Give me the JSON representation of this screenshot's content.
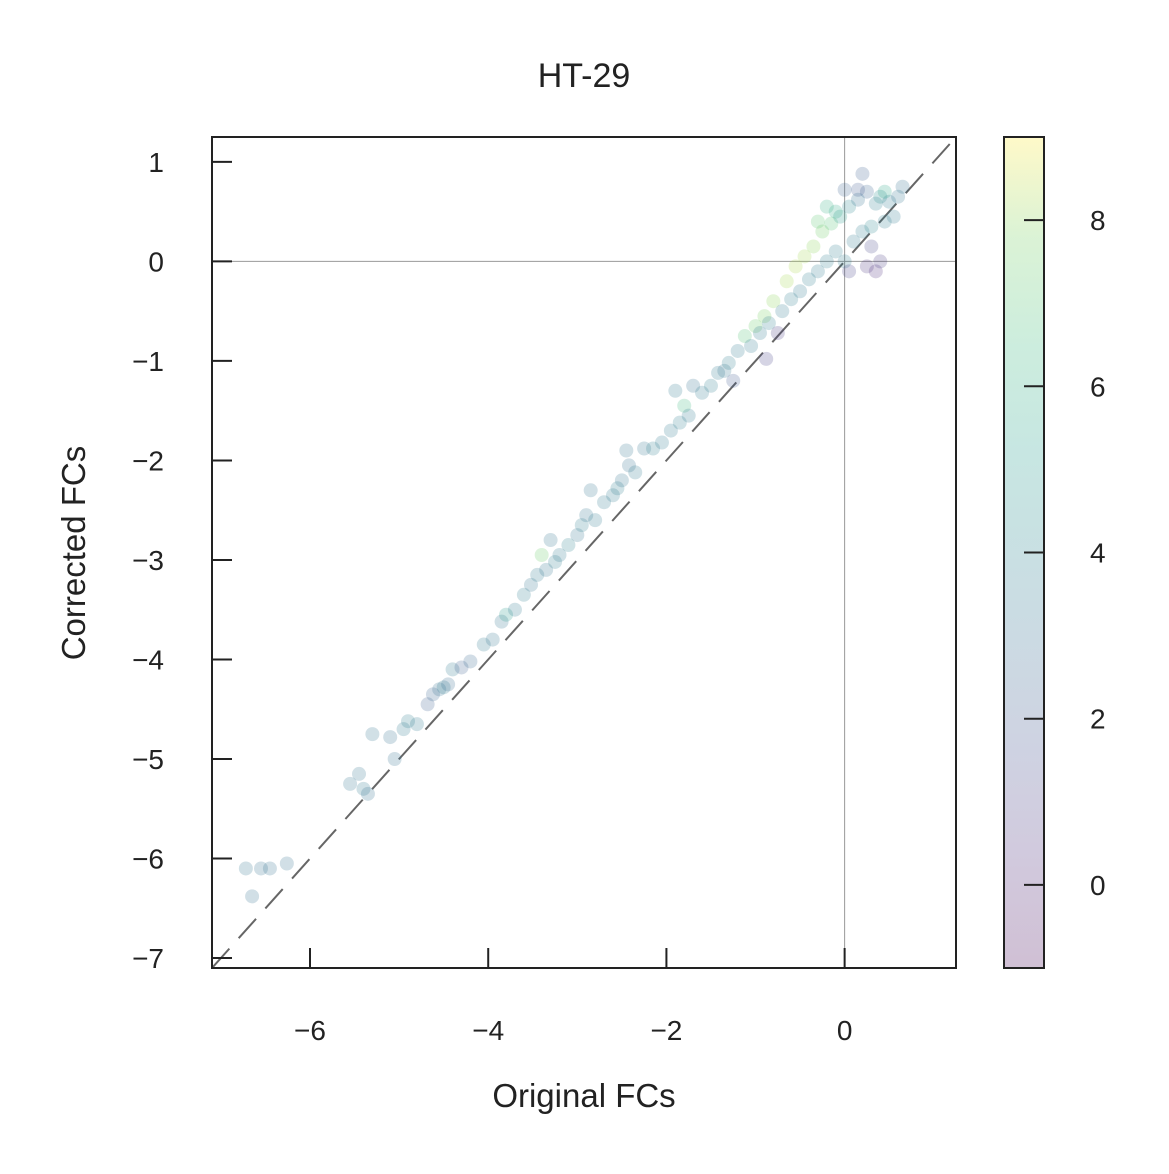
{
  "chart_data": {
    "type": "scatter",
    "title": "HT-29",
    "xlabel": "Original FCs",
    "ylabel": "Corrected FCs",
    "xlim": [
      -7.1,
      1.25
    ],
    "ylim": [
      -7.1,
      1.25
    ],
    "x_ticks": [
      -6,
      -4,
      -2,
      0
    ],
    "x_tick_labels": [
      "−6",
      "−4",
      "−2",
      "0"
    ],
    "y_ticks": [
      1,
      0,
      -1,
      -2,
      -3,
      -4,
      -5,
      -6,
      -7
    ],
    "y_tick_labels": [
      "1",
      "0",
      "−1",
      "−2",
      "−3",
      "−4",
      "−5",
      "−6",
      "−7"
    ],
    "reference_lines": {
      "diagonal": "y = x (dashed)",
      "horizontal": 0,
      "vertical": 0
    },
    "colorbar": {
      "colormap": "viridis",
      "range": [
        -1,
        9
      ],
      "ticks": [
        0,
        2,
        4,
        6,
        8
      ],
      "tick_labels": [
        "0",
        "2",
        "4",
        "6",
        "8"
      ]
    },
    "grid": false,
    "legend": "none",
    "point_alpha": 0.22,
    "colors": {
      "axes": "#222222",
      "reference_line": "#666666",
      "zero_lines": "#999999"
    },
    "points": [
      [
        -6.72,
        -6.1,
        3.2
      ],
      [
        -6.55,
        -6.1,
        3.0
      ],
      [
        -6.45,
        -6.1,
        3.1
      ],
      [
        -6.26,
        -6.05,
        3.0
      ],
      [
        -6.65,
        -6.38,
        3.0
      ],
      [
        -5.55,
        -5.25,
        3.3
      ],
      [
        -5.45,
        -5.15,
        3.2
      ],
      [
        -5.4,
        -5.3,
        3.5
      ],
      [
        -5.35,
        -5.35,
        3.0
      ],
      [
        -5.3,
        -4.75,
        3.2
      ],
      [
        -5.1,
        -4.78,
        3.1
      ],
      [
        -5.05,
        -5.0,
        3.0
      ],
      [
        -4.95,
        -4.7,
        3.4
      ],
      [
        -4.9,
        -4.62,
        3.6
      ],
      [
        -4.8,
        -4.65,
        3.5
      ],
      [
        -4.68,
        -4.45,
        2.2
      ],
      [
        -4.62,
        -4.35,
        2.5
      ],
      [
        -4.55,
        -4.3,
        3.0
      ],
      [
        -4.5,
        -4.28,
        3.5
      ],
      [
        -4.45,
        -4.25,
        2.8
      ],
      [
        -4.4,
        -4.1,
        3.4
      ],
      [
        -4.3,
        -4.08,
        2.2
      ],
      [
        -4.2,
        -4.02,
        2.6
      ],
      [
        -4.05,
        -3.85,
        3.4
      ],
      [
        -3.95,
        -3.8,
        3.2
      ],
      [
        -3.85,
        -3.62,
        3.3
      ],
      [
        -3.8,
        -3.55,
        5.0
      ],
      [
        -3.7,
        -3.5,
        3.4
      ],
      [
        -3.6,
        -3.35,
        3.6
      ],
      [
        -3.52,
        -3.25,
        3.3
      ],
      [
        -3.45,
        -3.15,
        3.5
      ],
      [
        -3.4,
        -2.95,
        7.5
      ],
      [
        -3.35,
        -3.1,
        3.2
      ],
      [
        -3.3,
        -2.8,
        3.2
      ],
      [
        -3.25,
        -3.02,
        3.6
      ],
      [
        -3.2,
        -2.95,
        3.4
      ],
      [
        -3.1,
        -2.85,
        3.8
      ],
      [
        -3.0,
        -2.75,
        3.3
      ],
      [
        -2.95,
        -2.65,
        3.6
      ],
      [
        -2.9,
        -2.55,
        3.2
      ],
      [
        -2.8,
        -2.6,
        3.4
      ],
      [
        -2.7,
        -2.42,
        3.5
      ],
      [
        -2.6,
        -2.35,
        3.4
      ],
      [
        -2.55,
        -2.28,
        3.7
      ],
      [
        -2.5,
        -2.2,
        3.3
      ],
      [
        -2.42,
        -2.05,
        3.0
      ],
      [
        -2.35,
        -2.12,
        3.5
      ],
      [
        -2.25,
        -1.88,
        3.2
      ],
      [
        -2.15,
        -1.88,
        3.6
      ],
      [
        -2.05,
        -1.82,
        3.5
      ],
      [
        -1.95,
        -1.7,
        3.4
      ],
      [
        -1.85,
        -1.62,
        3.7
      ],
      [
        -1.8,
        -1.45,
        6.5
      ],
      [
        -1.75,
        -1.55,
        3.5
      ],
      [
        -1.7,
        -1.25,
        3.0
      ],
      [
        -1.6,
        -1.32,
        3.4
      ],
      [
        -1.5,
        -1.25,
        3.6
      ],
      [
        -1.42,
        -1.12,
        3.5
      ],
      [
        -1.35,
        -1.1,
        3.3
      ],
      [
        -1.3,
        -1.02,
        3.6
      ],
      [
        -1.2,
        -0.9,
        3.4
      ],
      [
        -1.12,
        -0.75,
        7.0
      ],
      [
        -1.05,
        -0.85,
        3.5
      ],
      [
        -1.0,
        -0.65,
        7.5
      ],
      [
        -0.95,
        -0.72,
        3.4
      ],
      [
        -0.9,
        -0.55,
        7.8
      ],
      [
        -0.85,
        -0.62,
        3.6
      ],
      [
        -0.8,
        -0.4,
        8.0
      ],
      [
        -0.75,
        -0.72,
        0.8
      ],
      [
        -0.7,
        -0.5,
        3.5
      ],
      [
        -0.65,
        -0.2,
        8.2
      ],
      [
        -0.6,
        -0.38,
        3.6
      ],
      [
        -0.55,
        -0.05,
        8.3
      ],
      [
        -0.5,
        -0.3,
        3.4
      ],
      [
        -0.45,
        0.05,
        8.2
      ],
      [
        -0.4,
        -0.18,
        3.6
      ],
      [
        -0.35,
        0.15,
        8.0
      ],
      [
        -0.3,
        -0.1,
        3.5
      ],
      [
        -0.25,
        0.3,
        7.6
      ],
      [
        -0.2,
        0.0,
        3.7
      ],
      [
        -0.15,
        0.38,
        7.0
      ],
      [
        -0.1,
        0.1,
        3.6
      ],
      [
        -0.05,
        0.45,
        5.0
      ],
      [
        0.0,
        0.0,
        3.6
      ],
      [
        0.05,
        0.55,
        4.2
      ],
      [
        0.1,
        0.2,
        3.5
      ],
      [
        0.15,
        0.62,
        3.0
      ],
      [
        0.2,
        0.3,
        3.6
      ],
      [
        0.25,
        0.7,
        2.5
      ],
      [
        0.3,
        0.35,
        4.0
      ],
      [
        0.35,
        0.58,
        3.7
      ],
      [
        0.4,
        0.65,
        4.5
      ],
      [
        0.45,
        0.4,
        3.6
      ],
      [
        0.5,
        0.6,
        3.4
      ],
      [
        0.55,
        0.45,
        3.5
      ],
      [
        0.6,
        0.65,
        3.3
      ],
      [
        0.65,
        0.75,
        3.0
      ],
      [
        0.2,
        0.88,
        2.2
      ],
      [
        0.25,
        -0.05,
        0.5
      ],
      [
        0.35,
        -0.1,
        0.4
      ],
      [
        0.05,
        -0.1,
        1.0
      ],
      [
        0.3,
        0.15,
        1.2
      ],
      [
        0.15,
        0.72,
        2.0
      ],
      [
        0.45,
        0.7,
        5.5
      ],
      [
        -0.2,
        0.55,
        6.0
      ],
      [
        -0.3,
        0.4,
        7.2
      ],
      [
        -0.1,
        0.5,
        5.8
      ],
      [
        0.0,
        0.72,
        2.4
      ],
      [
        0.4,
        0.0,
        0.8
      ],
      [
        -0.88,
        -0.98,
        1.0
      ],
      [
        -1.25,
        -1.2,
        2.0
      ],
      [
        -2.85,
        -2.3,
        3.3
      ],
      [
        -2.45,
        -1.9,
        3.2
      ],
      [
        -1.9,
        -1.3,
        3.4
      ]
    ]
  }
}
